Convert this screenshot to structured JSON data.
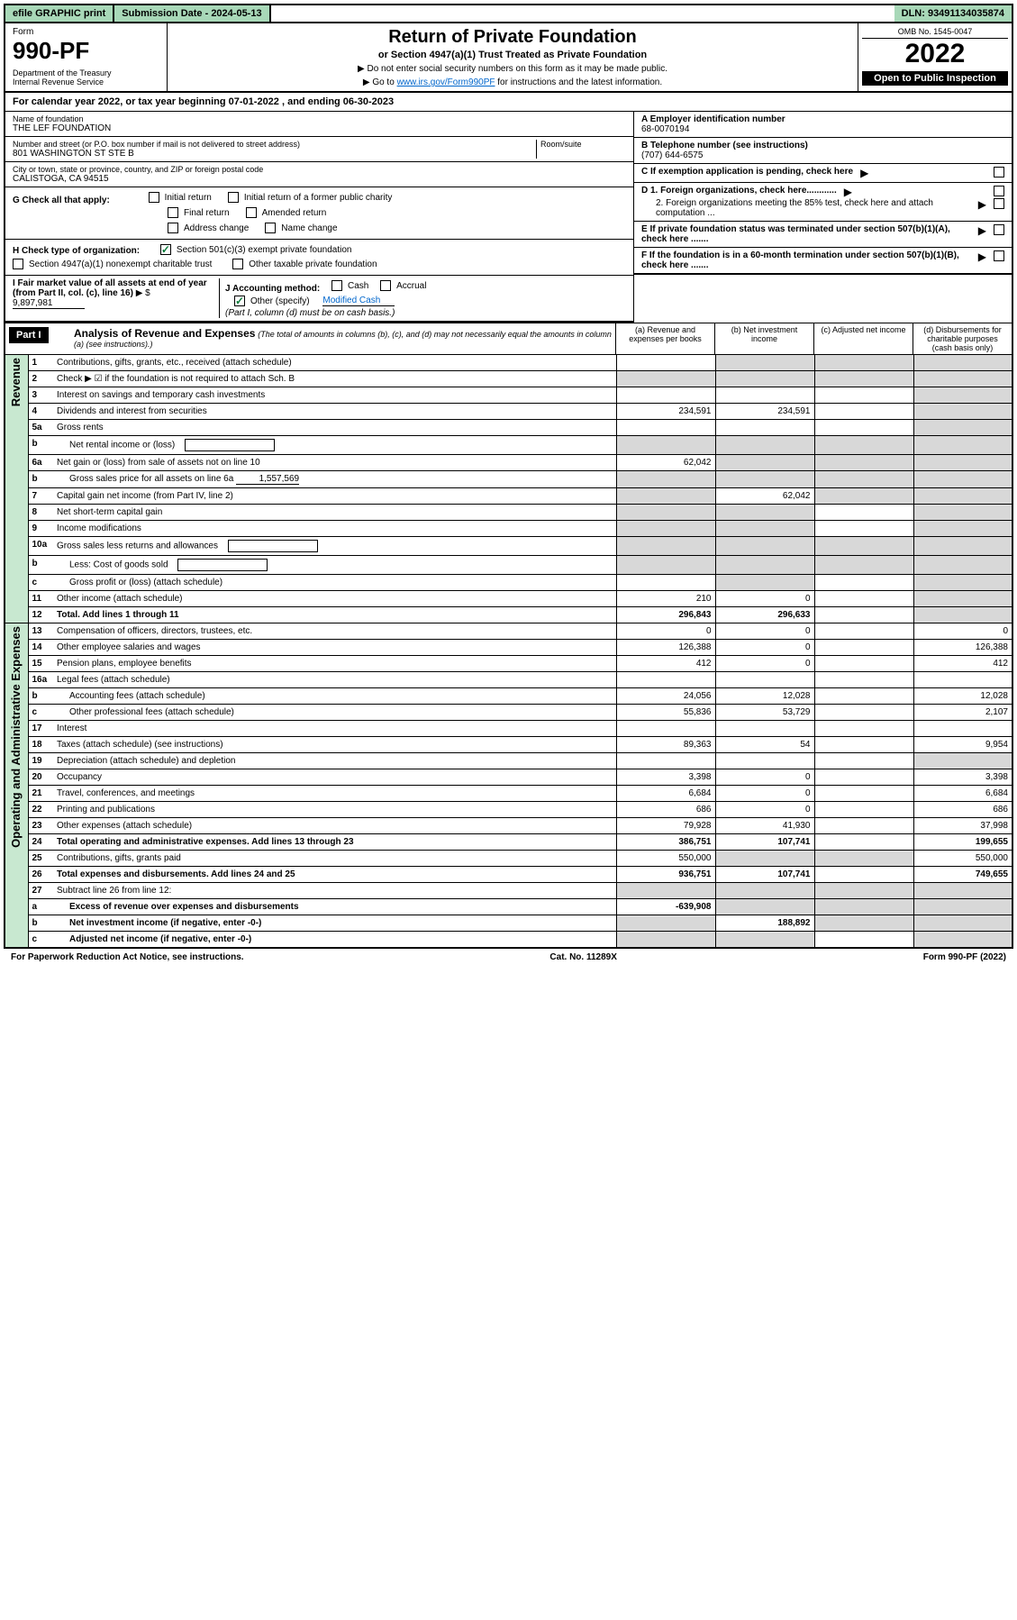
{
  "top": {
    "efile": "efile GRAPHIC print",
    "submission_label": "Submission Date - 2024-05-13",
    "dln": "DLN: 93491134035874"
  },
  "header": {
    "form_label": "Form",
    "form_number": "990-PF",
    "dept": "Department of the Treasury\nInternal Revenue Service",
    "title": "Return of Private Foundation",
    "subtitle": "or Section 4947(a)(1) Trust Treated as Private Foundation",
    "note1": "▶ Do not enter social security numbers on this form as it may be made public.",
    "note2_prefix": "▶ Go to ",
    "note2_link": "www.irs.gov/Form990PF",
    "note2_suffix": " for instructions and the latest information.",
    "omb": "OMB No. 1545-0047",
    "year": "2022",
    "open_public": "Open to Public Inspection"
  },
  "cal_year": "For calendar year 2022, or tax year beginning 07-01-2022                 , and ending 06-30-2023",
  "info": {
    "name_label": "Name of foundation",
    "name": "THE LEF FOUNDATION",
    "addr_label": "Number and street (or P.O. box number if mail is not delivered to street address)",
    "room_label": "Room/suite",
    "addr": "801 WASHINGTON ST STE B",
    "city_label": "City or town, state or province, country, and ZIP or foreign postal code",
    "city": "CALISTOGA, CA  94515",
    "a_label": "A Employer identification number",
    "ein": "68-0070194",
    "b_label": "B Telephone number (see instructions)",
    "phone": "(707) 644-6575",
    "c_label": "C If exemption application is pending, check here",
    "d1_label": "D 1. Foreign organizations, check here............",
    "d2_label": "2. Foreign organizations meeting the 85% test, check here and attach computation ...",
    "e_label": "E  If private foundation status was terminated under section 507(b)(1)(A), check here .......",
    "f_label": "F  If the foundation is in a 60-month termination under section 507(b)(1)(B), check here .......",
    "g_label": "G Check all that apply:",
    "g_opts": {
      "initial": "Initial return",
      "initial_former": "Initial return of a former public charity",
      "final": "Final return",
      "amended": "Amended return",
      "addr_change": "Address change",
      "name_change": "Name change"
    },
    "h_label": "H Check type of organization:",
    "h_501c3": "Section 501(c)(3) exempt private foundation",
    "h_4947": "Section 4947(a)(1) nonexempt charitable trust",
    "h_other": "Other taxable private foundation",
    "i_label": "I Fair market value of all assets at end of year (from Part II, col. (c), line 16)",
    "i_value": "9,897,981",
    "i_prefix": "▶ $",
    "j_label": "J Accounting method:",
    "j_cash": "Cash",
    "j_accrual": "Accrual",
    "j_other": "Other (specify)",
    "j_other_val": "Modified Cash",
    "j_note": "(Part I, column (d) must be on cash basis.)"
  },
  "part1": {
    "label": "Part I",
    "title": "Analysis of Revenue and Expenses",
    "note": "(The total of amounts in columns (b), (c), and (d) may not necessarily equal the amounts in column (a) (see instructions).)",
    "col_a": "(a)   Revenue and expenses per books",
    "col_b": "(b)   Net investment income",
    "col_c": "(c)   Adjusted net income",
    "col_d": "(d)   Disbursements for charitable purposes (cash basis only)"
  },
  "sections": {
    "revenue": "Revenue",
    "expenses": "Operating and Administrative Expenses"
  },
  "rows": [
    {
      "n": "1",
      "desc": "Contributions, gifts, grants, etc., received (attach schedule)",
      "a": "",
      "b": "shaded",
      "c": "shaded",
      "d": "shaded"
    },
    {
      "n": "2",
      "desc": "Check ▶ ☑ if the foundation is not required to attach Sch. B",
      "a": "shaded",
      "b": "shaded",
      "c": "shaded",
      "d": "shaded",
      "no_a": true
    },
    {
      "n": "3",
      "desc": "Interest on savings and temporary cash investments",
      "a": "",
      "b": "",
      "c": "",
      "d": "shaded"
    },
    {
      "n": "4",
      "desc": "Dividends and interest from securities",
      "a": "234,591",
      "b": "234,591",
      "c": "",
      "d": "shaded"
    },
    {
      "n": "5a",
      "desc": "Gross rents",
      "a": "",
      "b": "",
      "c": "",
      "d": "shaded"
    },
    {
      "n": "b",
      "desc": "Net rental income or (loss)",
      "a": "shaded",
      "b": "shaded",
      "c": "shaded",
      "d": "shaded",
      "inset": true,
      "has_box": true
    },
    {
      "n": "6a",
      "desc": "Net gain or (loss) from sale of assets not on line 10",
      "a": "62,042",
      "b": "shaded",
      "c": "shaded",
      "d": "shaded"
    },
    {
      "n": "b",
      "desc": "Gross sales price for all assets on line 6a",
      "a": "shaded",
      "b": "shaded",
      "c": "shaded",
      "d": "shaded",
      "inset": true,
      "box_val": "1,557,569"
    },
    {
      "n": "7",
      "desc": "Capital gain net income (from Part IV, line 2)",
      "a": "shaded",
      "b": "62,042",
      "c": "shaded",
      "d": "shaded"
    },
    {
      "n": "8",
      "desc": "Net short-term capital gain",
      "a": "shaded",
      "b": "shaded",
      "c": "",
      "d": "shaded"
    },
    {
      "n": "9",
      "desc": "Income modifications",
      "a": "shaded",
      "b": "shaded",
      "c": "",
      "d": "shaded"
    },
    {
      "n": "10a",
      "desc": "Gross sales less returns and allowances",
      "a": "shaded",
      "b": "shaded",
      "c": "shaded",
      "d": "shaded",
      "has_box": true
    },
    {
      "n": "b",
      "desc": "Less: Cost of goods sold",
      "a": "shaded",
      "b": "shaded",
      "c": "shaded",
      "d": "shaded",
      "inset": true,
      "has_box": true
    },
    {
      "n": "c",
      "desc": "Gross profit or (loss) (attach schedule)",
      "a": "",
      "b": "shaded",
      "c": "",
      "d": "shaded",
      "inset": true
    },
    {
      "n": "11",
      "desc": "Other income (attach schedule)",
      "a": "210",
      "b": "0",
      "c": "",
      "d": "shaded"
    },
    {
      "n": "12",
      "desc": "Total. Add lines 1 through 11",
      "a": "296,843",
      "b": "296,633",
      "c": "",
      "d": "shaded",
      "bold": true
    }
  ],
  "exp_rows": [
    {
      "n": "13",
      "desc": "Compensation of officers, directors, trustees, etc.",
      "a": "0",
      "b": "0",
      "c": "",
      "d": "0"
    },
    {
      "n": "14",
      "desc": "Other employee salaries and wages",
      "a": "126,388",
      "b": "0",
      "c": "",
      "d": "126,388"
    },
    {
      "n": "15",
      "desc": "Pension plans, employee benefits",
      "a": "412",
      "b": "0",
      "c": "",
      "d": "412"
    },
    {
      "n": "16a",
      "desc": "Legal fees (attach schedule)",
      "a": "",
      "b": "",
      "c": "",
      "d": ""
    },
    {
      "n": "b",
      "desc": "Accounting fees (attach schedule)",
      "a": "24,056",
      "b": "12,028",
      "c": "",
      "d": "12,028",
      "inset": true
    },
    {
      "n": "c",
      "desc": "Other professional fees (attach schedule)",
      "a": "55,836",
      "b": "53,729",
      "c": "",
      "d": "2,107",
      "inset": true
    },
    {
      "n": "17",
      "desc": "Interest",
      "a": "",
      "b": "",
      "c": "",
      "d": ""
    },
    {
      "n": "18",
      "desc": "Taxes (attach schedule) (see instructions)",
      "a": "89,363",
      "b": "54",
      "c": "",
      "d": "9,954"
    },
    {
      "n": "19",
      "desc": "Depreciation (attach schedule) and depletion",
      "a": "",
      "b": "",
      "c": "",
      "d": "shaded"
    },
    {
      "n": "20",
      "desc": "Occupancy",
      "a": "3,398",
      "b": "0",
      "c": "",
      "d": "3,398"
    },
    {
      "n": "21",
      "desc": "Travel, conferences, and meetings",
      "a": "6,684",
      "b": "0",
      "c": "",
      "d": "6,684"
    },
    {
      "n": "22",
      "desc": "Printing and publications",
      "a": "686",
      "b": "0",
      "c": "",
      "d": "686"
    },
    {
      "n": "23",
      "desc": "Other expenses (attach schedule)",
      "a": "79,928",
      "b": "41,930",
      "c": "",
      "d": "37,998"
    },
    {
      "n": "24",
      "desc": "Total operating and administrative expenses. Add lines 13 through 23",
      "a": "386,751",
      "b": "107,741",
      "c": "",
      "d": "199,655",
      "bold": true
    },
    {
      "n": "25",
      "desc": "Contributions, gifts, grants paid",
      "a": "550,000",
      "b": "shaded",
      "c": "shaded",
      "d": "550,000"
    },
    {
      "n": "26",
      "desc": "Total expenses and disbursements. Add lines 24 and 25",
      "a": "936,751",
      "b": "107,741",
      "c": "",
      "d": "749,655",
      "bold": true
    },
    {
      "n": "27",
      "desc": "Subtract line 26 from line 12:",
      "a": "shaded",
      "b": "shaded",
      "c": "shaded",
      "d": "shaded"
    },
    {
      "n": "a",
      "desc": "Excess of revenue over expenses and disbursements",
      "a": "-639,908",
      "b": "shaded",
      "c": "shaded",
      "d": "shaded",
      "inset": true,
      "bold": true
    },
    {
      "n": "b",
      "desc": "Net investment income (if negative, enter -0-)",
      "a": "shaded",
      "b": "188,892",
      "c": "shaded",
      "d": "shaded",
      "inset": true,
      "bold": true
    },
    {
      "n": "c",
      "desc": "Adjusted net income (if negative, enter -0-)",
      "a": "shaded",
      "b": "shaded",
      "c": "",
      "d": "shaded",
      "inset": true,
      "bold": true
    }
  ],
  "footer": {
    "left": "For Paperwork Reduction Act Notice, see instructions.",
    "mid": "Cat. No. 11289X",
    "right": "Form 990-PF (2022)"
  }
}
